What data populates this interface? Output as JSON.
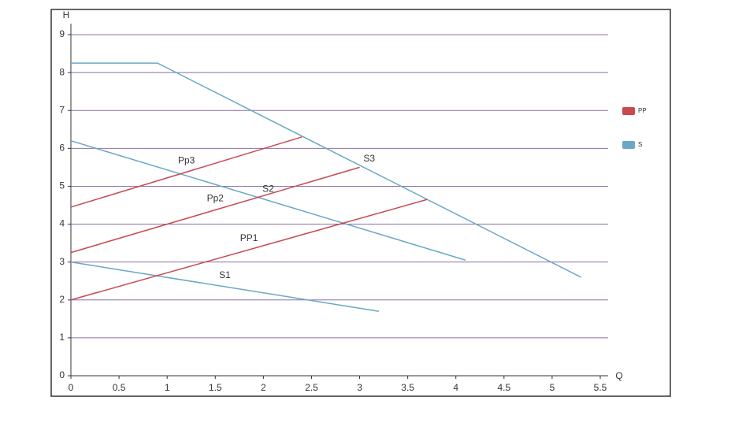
{
  "chart_data": {
    "type": "line",
    "x_label": "Q",
    "y_label": "H",
    "xlim": [
      0,
      5.5
    ],
    "ylim": [
      0,
      9
    ],
    "xticks": [
      0,
      0.5,
      1,
      1.5,
      2,
      2.5,
      3,
      3.5,
      4,
      4.5,
      5,
      5.5
    ],
    "yticks": [
      0,
      1,
      2,
      3,
      4,
      5,
      6,
      7,
      8,
      9
    ],
    "grid": true,
    "legend": [
      {
        "label": "PP",
        "color": "#c8494f"
      },
      {
        "label": "S",
        "color": "#6aa7c8"
      }
    ],
    "series": [
      {
        "name": "S3",
        "color": "#6aa7c8",
        "x": [
          0,
          0.9,
          5.3
        ],
        "values": [
          8.25,
          8.25,
          2.6
        ]
      },
      {
        "name": "S2",
        "color": "#6aa7c8",
        "x": [
          0,
          4.1
        ],
        "values": [
          6.2,
          3.05
        ]
      },
      {
        "name": "S1",
        "color": "#6aa7c8",
        "x": [
          0,
          3.2
        ],
        "values": [
          3.0,
          1.7
        ]
      },
      {
        "name": "PP1",
        "color": "#c8494f",
        "x": [
          0,
          3.7
        ],
        "values": [
          2.0,
          4.65
        ]
      },
      {
        "name": "Pp2",
        "color": "#c8494f",
        "x": [
          0,
          3.0
        ],
        "values": [
          3.25,
          5.5
        ]
      },
      {
        "name": "Pp3",
        "color": "#c8494f",
        "x": [
          0,
          2.4
        ],
        "values": [
          4.45,
          6.3
        ]
      }
    ]
  }
}
